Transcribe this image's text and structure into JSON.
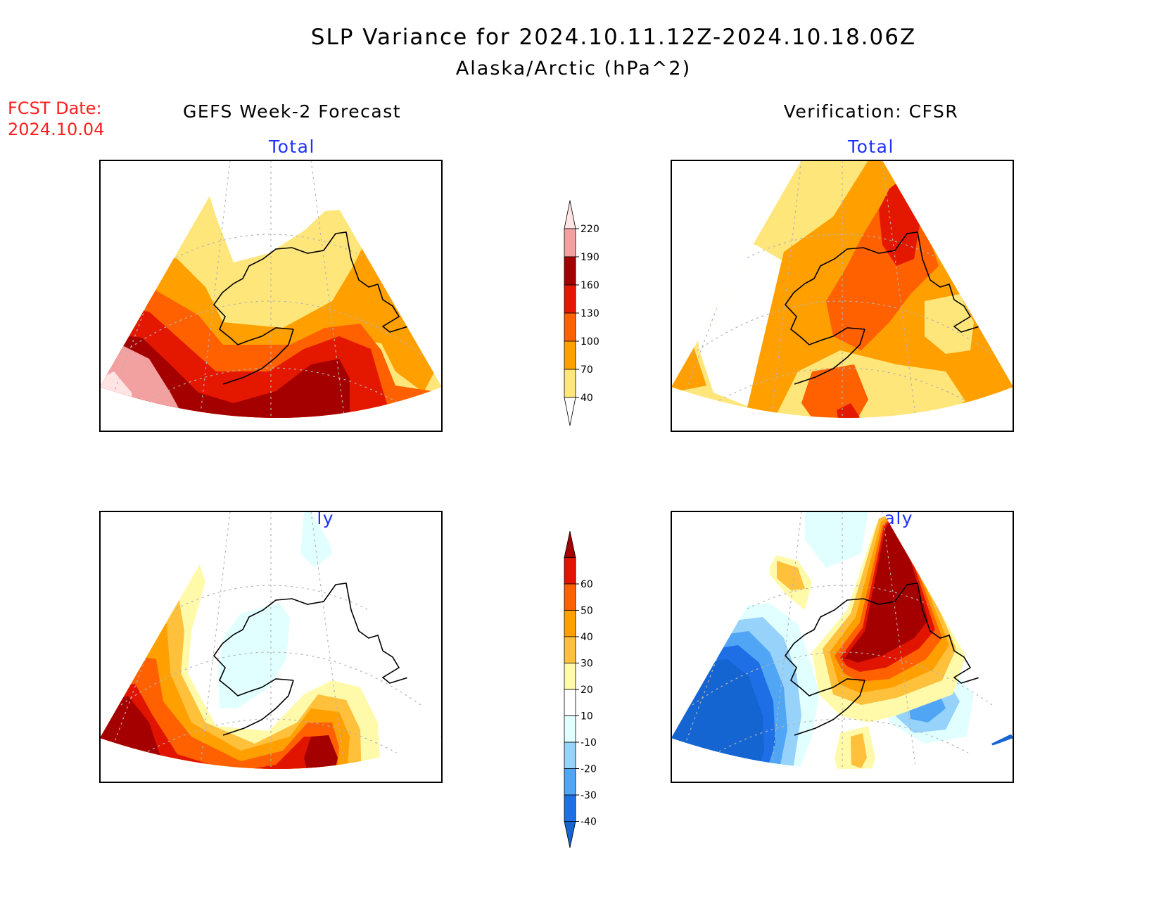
{
  "title": "SLP Variance for 2024.10.11.12Z-2024.10.18.06Z",
  "subtitle": "Alaska/Arctic (hPa^2)",
  "fcst_date": {
    "label": "FCST Date:",
    "value": "2024.10.04"
  },
  "columns": {
    "left": "GEFS Week-2 Forecast",
    "right": "Verification: CFSR"
  },
  "panel_titles": {
    "total": "Total",
    "anomaly": "Anomaly"
  },
  "colorbars": {
    "total": {
      "levels": [
        "40",
        "70",
        "100",
        "130",
        "160",
        "190",
        "220"
      ],
      "colors": [
        "#ffffff",
        "#ffe67a",
        "#ffa000",
        "#ff6000",
        "#e41800",
        "#a50000",
        "#f2a0a0",
        "#ffe4e4"
      ]
    },
    "anomaly": {
      "levels": [
        "-40",
        "-30",
        "-20",
        "-10",
        "10",
        "20",
        "30",
        "40",
        "50",
        "60"
      ],
      "colors": [
        "#1464d2",
        "#1e6ee6",
        "#50a5f5",
        "#96d2fa",
        "#e1ffff",
        "#ffffff",
        "#fffaaa",
        "#ffc03c",
        "#ffa000",
        "#ff6000",
        "#e11400",
        "#a50000"
      ]
    }
  },
  "map_colors": {
    "coast": "#000000",
    "grid": "#b4b4b4",
    "label": "#1e32ff",
    "fcst": "#ff1e1e"
  }
}
